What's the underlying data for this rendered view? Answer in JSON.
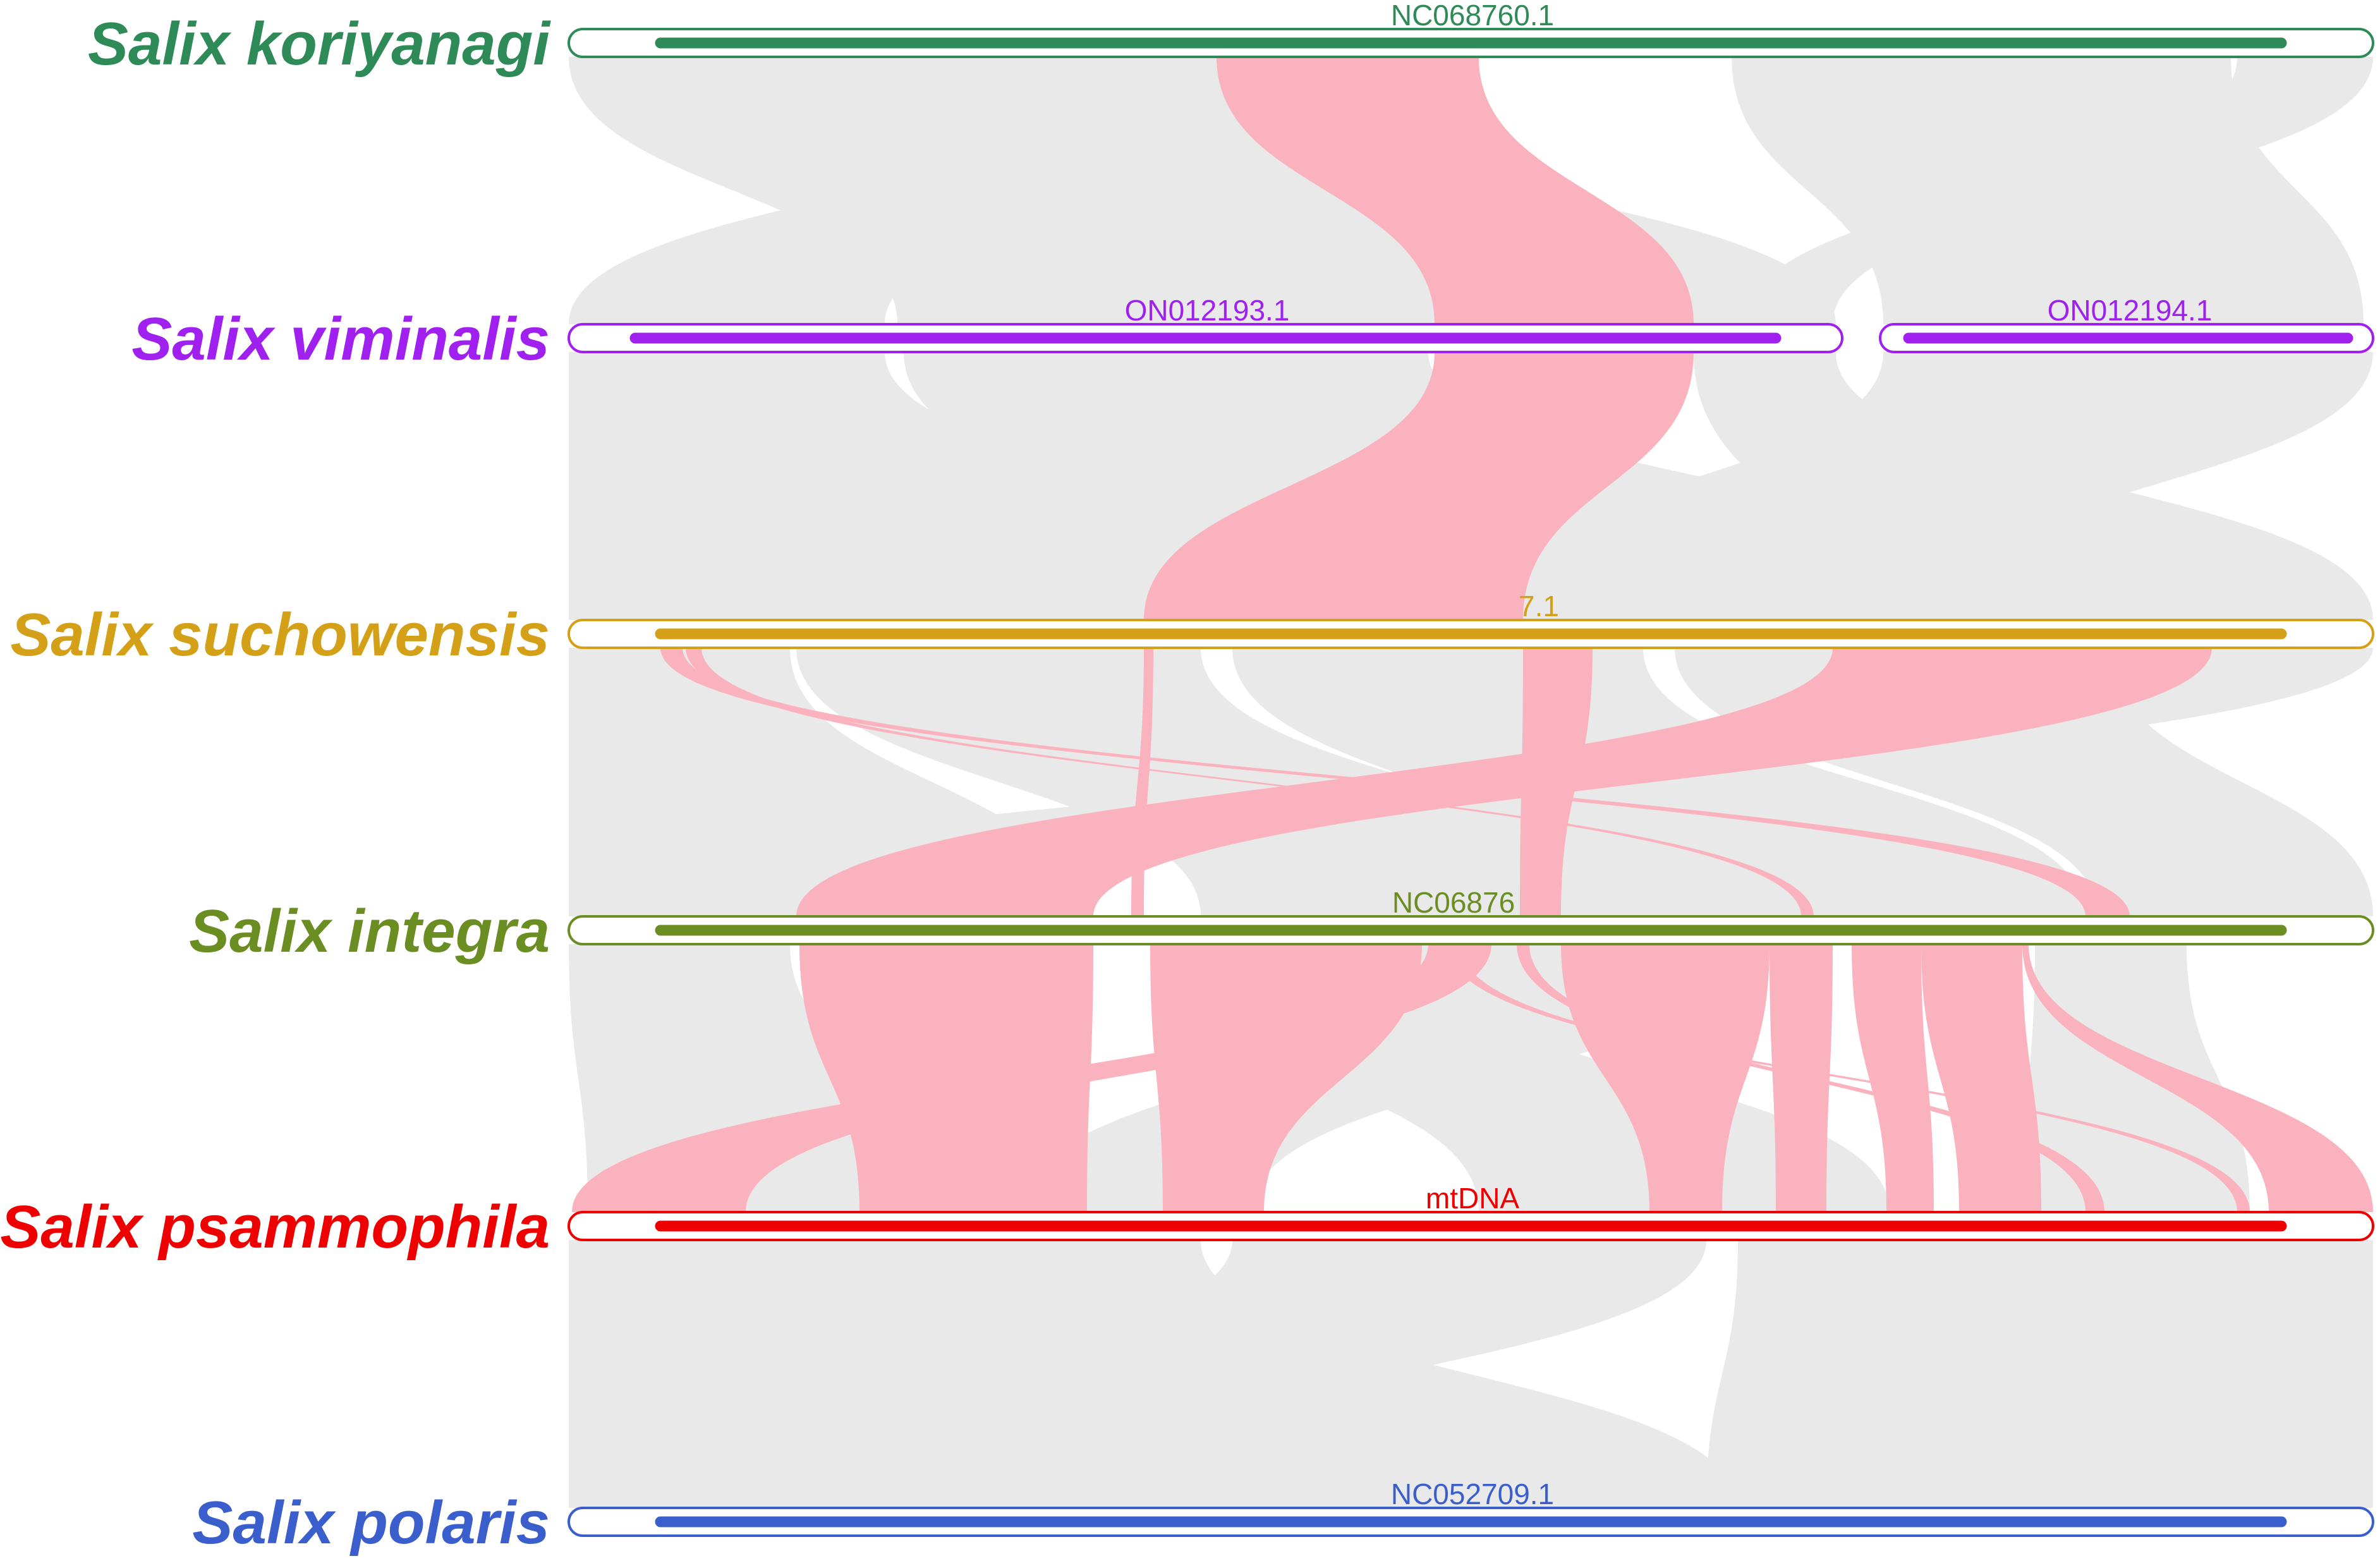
{
  "colors": {
    "link_gray": "#e9e9e9",
    "link_pink": "#fbb2bf",
    "background": "#ffffff"
  },
  "genomes": [
    {
      "species": "Salix koriyanagi",
      "color": "#2e8b57",
      "contigs": [
        {
          "label": "NC068760.1"
        }
      ]
    },
    {
      "species": "Salix viminalis",
      "color": "#a020f0",
      "contigs": [
        {
          "label": "ON012193.1"
        },
        {
          "label": "ON012194.1"
        }
      ]
    },
    {
      "species": "Salix suchowensis",
      "color": "#d4a017",
      "contigs": [
        {
          "label": "7.1"
        }
      ]
    },
    {
      "species": "Salix integra",
      "color": "#6b8e23",
      "contigs": [
        {
          "label": "NC06876"
        }
      ]
    },
    {
      "species": "Salix psammophila",
      "color": "#ee0000",
      "contigs": [
        {
          "label": "mtDNA"
        }
      ]
    },
    {
      "species": "Salix polaris",
      "color": "#3a5fcd",
      "contigs": [
        {
          "label": "NC052709.1"
        }
      ]
    }
  ]
}
